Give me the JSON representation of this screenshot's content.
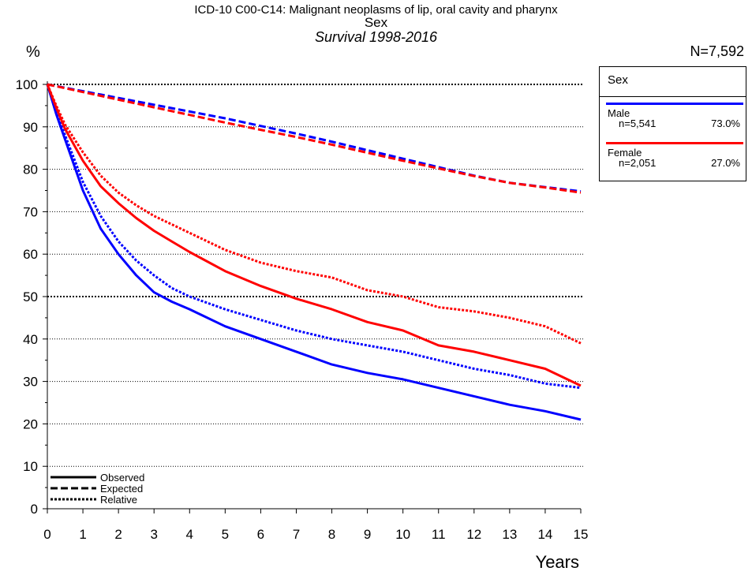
{
  "header": {
    "title_line1": "ICD-10 C00-C14: Malignant neoplasms of lip, oral cavity and pharynx",
    "title_line2": "Sex",
    "title_line3": "Survival 1998-2016",
    "y_unit": "%",
    "n_total": "N=7,592",
    "x_label": "Years"
  },
  "legend": {
    "title": "Sex",
    "groups": [
      {
        "name": "Male",
        "n": "n=5,541",
        "pct": "73.0%",
        "color": "#0000ff"
      },
      {
        "name": "Female",
        "n": "n=2,051",
        "pct": "27.0%",
        "color": "#ff0000"
      }
    ],
    "styles": [
      {
        "label": "Observed",
        "dash": "solid"
      },
      {
        "label": "Expected",
        "dash": "dashed"
      },
      {
        "label": "Relative",
        "dash": "dotted"
      }
    ]
  },
  "chart_data": {
    "type": "line",
    "title": "ICD-10 C00-C14: Malignant neoplasms of lip, oral cavity and pharynx",
    "subtitle": "Sex — Survival 1998-2016",
    "xlabel": "Years",
    "ylabel": "%",
    "xlim": [
      0,
      15
    ],
    "ylim": [
      0,
      100
    ],
    "x_ticks": [
      0,
      1,
      2,
      3,
      4,
      5,
      6,
      7,
      8,
      9,
      10,
      11,
      12,
      13,
      14,
      15
    ],
    "y_ticks": [
      0,
      10,
      20,
      30,
      40,
      50,
      60,
      70,
      80,
      90,
      100
    ],
    "grid": "horizontal dotted",
    "x": [
      0,
      0.25,
      0.5,
      1,
      1.5,
      2,
      2.5,
      3,
      3.5,
      4,
      5,
      6,
      7,
      8,
      9,
      10,
      11,
      12,
      13,
      14,
      15
    ],
    "series": [
      {
        "name": "Male",
        "color": "#0000ff",
        "style": "Observed",
        "values": [
          100,
          93,
          87,
          75,
          66,
          60,
          55,
          51,
          48.8,
          47,
          43,
          40,
          37,
          34,
          32,
          30.5,
          28.5,
          26.5,
          24.5,
          23,
          21
        ]
      },
      {
        "name": "Male",
        "color": "#0000ff",
        "style": "Relative",
        "values": [
          100,
          93.5,
          88,
          77,
          69,
          63,
          58.5,
          55,
          52,
          50,
          47,
          44.5,
          42,
          40,
          38.5,
          37,
          35,
          33,
          31.5,
          29.5,
          28.5
        ]
      },
      {
        "name": "Male",
        "color": "#0000ff",
        "style": "Expected",
        "values": [
          100,
          99.6,
          99.2,
          98.4,
          97.6,
          96.8,
          96,
          95.2,
          94.4,
          93.6,
          92,
          90.2,
          88.4,
          86.5,
          84.5,
          82.5,
          80.5,
          78.5,
          76.8,
          75.8,
          74.8
        ]
      },
      {
        "name": "Female",
        "color": "#ff0000",
        "style": "Observed",
        "values": [
          100,
          94.5,
          89.5,
          82,
          76,
          72,
          68.5,
          65.5,
          63,
          60.5,
          56,
          52.5,
          49.5,
          47,
          44,
          42,
          38.5,
          37,
          35,
          33,
          29
        ]
      },
      {
        "name": "Female",
        "color": "#ff0000",
        "style": "Relative",
        "values": [
          100,
          95,
          90.5,
          84,
          78.5,
          74.5,
          71.5,
          69,
          67,
          65,
          61,
          58,
          56,
          54.5,
          51.5,
          50,
          47.5,
          46.5,
          45,
          43,
          39
        ]
      },
      {
        "name": "Female",
        "color": "#ff0000",
        "style": "Expected",
        "values": [
          100,
          99.55,
          99.1,
          98.2,
          97.3,
          96.4,
          95.5,
          94.6,
          93.7,
          92.8,
          91,
          89.3,
          87.6,
          85.8,
          83.9,
          82,
          80.2,
          78.4,
          76.8,
          75.7,
          74.5
        ]
      }
    ]
  }
}
